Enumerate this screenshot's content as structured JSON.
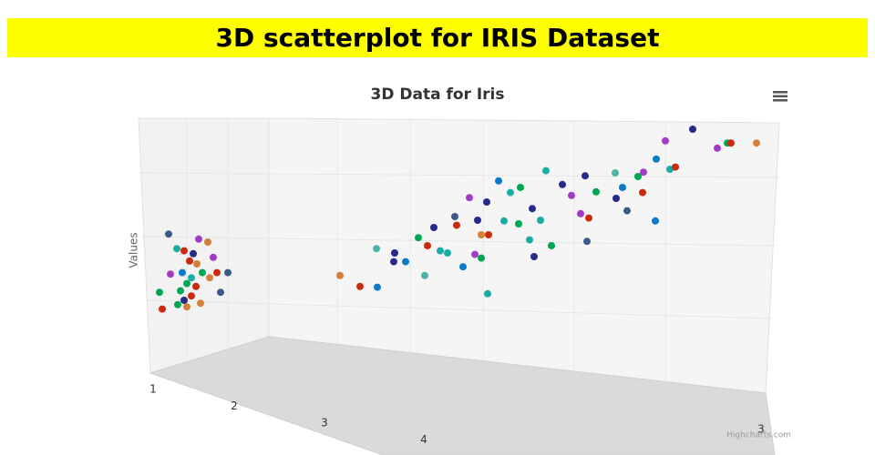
{
  "header": {
    "title": "3D scatterplot for IRIS Dataset"
  },
  "chart_data": {
    "type": "scatter",
    "title": "3D Data for Iris",
    "y_axis_title": "Values",
    "credits": "Highcharts.com",
    "xlim": [
      0,
      8
    ],
    "ylim": [
      0,
      3
    ],
    "xticks": [
      1,
      2,
      3,
      4
    ],
    "zticks": [
      3
    ],
    "x": [
      0.85,
      1.18,
      1.28,
      0.94,
      1.02,
      1.12,
      1.34,
      1.08,
      1.16,
      0.87,
      1.0,
      1.22,
      1.38,
      1.5,
      1.1,
      1.3,
      1.05,
      1.15,
      0.75,
      0.98,
      1.1,
      1.42,
      1.02,
      0.95,
      0.78,
      1.05,
      1.2,
      2.73,
      2.95,
      3.14,
      3.13,
      3.33,
      3.45,
      3.32,
      3.59,
      3.69,
      3.76,
      3.83,
      3.91,
      3.66,
      3.99,
      4.15,
      4.01,
      4.24,
      4.34,
      4.47,
      4.53,
      4.6,
      4.71,
      4.28,
      4.36,
      4.21,
      4.28,
      4.08,
      4.35,
      4.69,
      4.84,
      4.93,
      4.99,
      4.81,
      4.86,
      5.05,
      5.17,
      5.27,
      5.37,
      5.42,
      5.46,
      5.54,
      5.44,
      5.75,
      5.76,
      5.83,
      5.88,
      6.0,
      6.06,
      6.05,
      6.2,
      6.19,
      6.3,
      6.35,
      6.41,
      6.6,
      6.87,
      6.98,
      7.02,
      7.3
    ],
    "y": [
      1.16,
      1.09,
      1.05,
      0.96,
      0.93,
      0.89,
      0.84,
      0.79,
      0.75,
      0.61,
      0.63,
      0.63,
      0.63,
      0.63,
      0.56,
      0.56,
      0.48,
      0.44,
      0.36,
      0.38,
      0.31,
      0.36,
      0.25,
      0.19,
      0.13,
      0.16,
      0.21,
      0.59,
      0.44,
      0.43,
      0.96,
      0.9,
      0.78,
      0.78,
      1.11,
      1.0,
      1.25,
      0.93,
      0.9,
      0.59,
      1.4,
      1.66,
      1.28,
      1.35,
      1.6,
      1.89,
      1.34,
      1.73,
      1.8,
      1.15,
      1.15,
      0.88,
      0.83,
      0.71,
      0.34,
      1.3,
      1.51,
      1.35,
      2.03,
      1.08,
      0.85,
      1.0,
      1.84,
      1.69,
      1.44,
      1.96,
      1.38,
      1.74,
      1.06,
      2.0,
      1.65,
      1.8,
      1.48,
      1.95,
      2.01,
      1.73,
      2.19,
      1.34,
      2.44,
      2.05,
      2.08,
      2.6,
      2.34,
      2.41,
      2.41,
      2.41
    ],
    "colors": [
      "#3b5a8c",
      "#a23cc6",
      "#d4803a",
      "#1aada5",
      "#cc2a0f",
      "#262a8a",
      "#a23cc6",
      "#cc2a0f",
      "#d4803a",
      "#a23cc6",
      "#0a7bc8",
      "#00a651",
      "#cc2a0f",
      "#3b5a8c",
      "#1aada5",
      "#d4803a",
      "#00a651",
      "#cc2a0f",
      "#00a651",
      "#00a651",
      "#cc2a0f",
      "#3b5a8c",
      "#262a8a",
      "#00a651",
      "#cc2a0f",
      "#d4803a",
      "#d4803a",
      "#d4803a",
      "#cc2a0f",
      "#0a7bc8",
      "#4cb3a7",
      "#262a8a",
      "#0a7bc8",
      "#262a8a",
      "#00a651",
      "#cc2a0f",
      "#262a8a",
      "#1aada5",
      "#1aada5",
      "#4cb3a7",
      "#3b5a8c",
      "#a23cc6",
      "#cc2a0f",
      "#262a8a",
      "#262a8a",
      "#0a7bc8",
      "#1aada5",
      "#1aada5",
      "#00a651",
      "#d4803a",
      "#cc2a0f",
      "#a23cc6",
      "#00a651",
      "#0a7bc8",
      "#1aada5",
      "#00a651",
      "#262a8a",
      "#1aada5",
      "#1aada5",
      "#1aada5",
      "#262a8a",
      "#00a651",
      "#262a8a",
      "#a23cc6",
      "#a23cc6",
      "#262a8a",
      "#cc2a0f",
      "#00a651",
      "#3b5a8c",
      "#4cb3a7",
      "#262a8a",
      "#0a7bc8",
      "#3b5a8c",
      "#00a651",
      "#a23cc6",
      "#cc2a0f",
      "#0a7bc8",
      "#0a7bc8",
      "#a23cc6",
      "#1aada5",
      "#cc2a0f",
      "#262a8a",
      "#a23cc6",
      "#00a651",
      "#cc2a0f",
      "#d4803a"
    ]
  }
}
